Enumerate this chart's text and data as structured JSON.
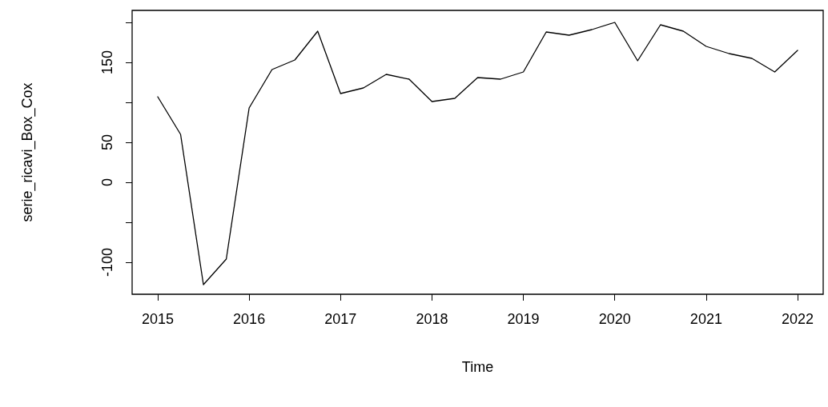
{
  "chart_data": {
    "type": "line",
    "xlabel": "Time",
    "ylabel": "serie_ricavi_Box_Cox",
    "x": [
      2015,
      2015.25,
      2015.5,
      2015.75,
      2016,
      2016.25,
      2016.5,
      2016.75,
      2017,
      2017.25,
      2017.5,
      2017.75,
      2018,
      2018.25,
      2018.5,
      2018.75,
      2019,
      2019.25,
      2019.5,
      2019.75,
      2020,
      2020.25,
      2020.5,
      2020.75,
      2021,
      2021.25,
      2021.5,
      2021.75,
      2022
    ],
    "series": [
      {
        "color": "#000000",
        "values": [
          107,
          60,
          -128,
          -96,
          93,
          141,
          153,
          189,
          111,
          118,
          135,
          129,
          101,
          105,
          131,
          129,
          138,
          188,
          184,
          191,
          200,
          152,
          197,
          189,
          170,
          161,
          155,
          138,
          165
        ]
      }
    ],
    "xlim": [
      2014.72,
      2022.28
    ],
    "xticks": [
      2015,
      2016,
      2017,
      2018,
      2019,
      2020,
      2021,
      2022
    ],
    "ylim": [
      -140,
      215
    ],
    "yticks": [
      {
        "value": -100,
        "label": "-100"
      },
      {
        "value": -50,
        "label": null
      },
      0,
      50,
      {
        "value": 100,
        "label": null
      },
      150,
      {
        "value": 200,
        "label": null
      }
    ],
    "grid": false,
    "marker": "none",
    "line_style": "solid"
  }
}
